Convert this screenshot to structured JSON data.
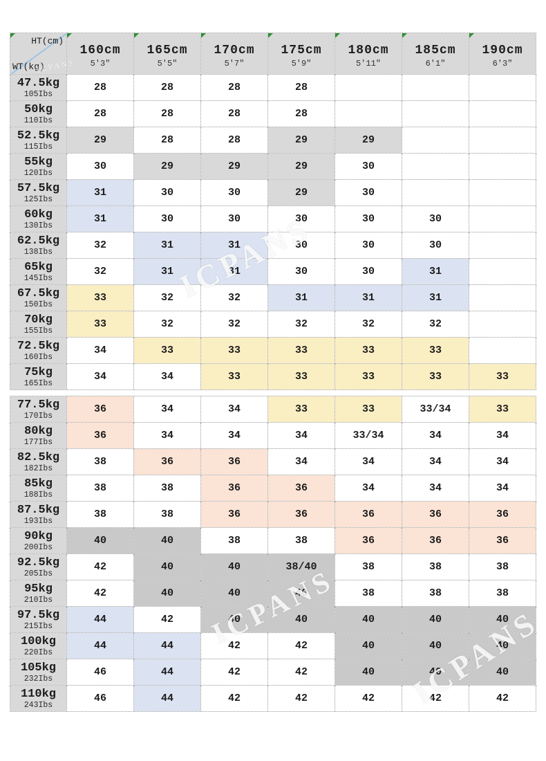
{
  "watermark_text": "ICPANS",
  "chart_data": {
    "type": "table",
    "corner": {
      "top_label": "HT(cm)",
      "bottom_label": "WT(kg)"
    },
    "columns": [
      {
        "cm": "160cm",
        "ft": "5'3\""
      },
      {
        "cm": "165cm",
        "ft": "5'5\""
      },
      {
        "cm": "170cm",
        "ft": "5'7\""
      },
      {
        "cm": "175cm",
        "ft": "5'9\""
      },
      {
        "cm": "180cm",
        "ft": "5'11\""
      },
      {
        "cm": "185cm",
        "ft": "6'1\""
      },
      {
        "cm": "190cm",
        "ft": "6'3\""
      }
    ],
    "bg_legend": {
      "w": "#ffffff",
      "g": "#d9d9d9",
      "d": "#c9c9c9",
      "b": "#dbe2f1",
      "y": "#faeec3",
      "p": "#fbe3d5"
    },
    "sections": [
      {
        "rows": [
          {
            "kg": "47.5kg",
            "lbs": "105Ibs",
            "values": [
              "28",
              "28",
              "28",
              "28",
              "",
              "",
              ""
            ],
            "bg": [
              "w",
              "w",
              "w",
              "w",
              "w",
              "w",
              "w"
            ]
          },
          {
            "kg": "50kg",
            "lbs": "110Ibs",
            "values": [
              "28",
              "28",
              "28",
              "28",
              "",
              "",
              ""
            ],
            "bg": [
              "w",
              "w",
              "w",
              "w",
              "w",
              "w",
              "w"
            ]
          },
          {
            "kg": "52.5kg",
            "lbs": "115Ibs",
            "values": [
              "29",
              "28",
              "28",
              "29",
              "29",
              "",
              ""
            ],
            "bg": [
              "g",
              "w",
              "w",
              "g",
              "g",
              "w",
              "w"
            ]
          },
          {
            "kg": "55kg",
            "lbs": "120Ibs",
            "values": [
              "30",
              "29",
              "29",
              "29",
              "30",
              "",
              ""
            ],
            "bg": [
              "w",
              "g",
              "g",
              "g",
              "w",
              "w",
              "w"
            ]
          },
          {
            "kg": "57.5kg",
            "lbs": "125Ibs",
            "values": [
              "31",
              "30",
              "30",
              "29",
              "30",
              "",
              ""
            ],
            "bg": [
              "b",
              "w",
              "w",
              "g",
              "w",
              "w",
              "w"
            ]
          },
          {
            "kg": "60kg",
            "lbs": "130Ibs",
            "values": [
              "31",
              "30",
              "30",
              "30",
              "30",
              "30",
              ""
            ],
            "bg": [
              "b",
              "w",
              "w",
              "w",
              "w",
              "w",
              "w"
            ]
          },
          {
            "kg": "62.5kg",
            "lbs": "138Ibs",
            "values": [
              "32",
              "31",
              "31",
              "30",
              "30",
              "30",
              ""
            ],
            "bg": [
              "w",
              "b",
              "b",
              "w",
              "w",
              "w",
              "w"
            ]
          },
          {
            "kg": "65kg",
            "lbs": "145Ibs",
            "values": [
              "32",
              "31",
              "31",
              "30",
              "30",
              "31",
              ""
            ],
            "bg": [
              "w",
              "b",
              "b",
              "w",
              "w",
              "b",
              "w"
            ]
          },
          {
            "kg": "67.5kg",
            "lbs": "150Ibs",
            "values": [
              "33",
              "32",
              "32",
              "31",
              "31",
              "31",
              ""
            ],
            "bg": [
              "y",
              "w",
              "w",
              "b",
              "b",
              "b",
              "w"
            ]
          },
          {
            "kg": "70kg",
            "lbs": "155Ibs",
            "values": [
              "33",
              "32",
              "32",
              "32",
              "32",
              "32",
              ""
            ],
            "bg": [
              "y",
              "w",
              "w",
              "w",
              "w",
              "w",
              "w"
            ]
          },
          {
            "kg": "72.5kg",
            "lbs": "160Ibs",
            "values": [
              "34",
              "33",
              "33",
              "33",
              "33",
              "33",
              ""
            ],
            "bg": [
              "w",
              "y",
              "y",
              "y",
              "y",
              "y",
              "w"
            ]
          },
          {
            "kg": "75kg",
            "lbs": "165Ibs",
            "values": [
              "34",
              "34",
              "33",
              "33",
              "33",
              "33",
              "33"
            ],
            "bg": [
              "w",
              "w",
              "y",
              "y",
              "y",
              "y",
              "y"
            ]
          }
        ]
      },
      {
        "rows": [
          {
            "kg": "77.5kg",
            "lbs": "170Ibs",
            "values": [
              "36",
              "34",
              "34",
              "33",
              "33",
              "33/34",
              "33"
            ],
            "bg": [
              "p",
              "w",
              "w",
              "y",
              "y",
              "w",
              "y"
            ]
          },
          {
            "kg": "80kg",
            "lbs": "177Ibs",
            "values": [
              "36",
              "34",
              "34",
              "34",
              "33/34",
              "34",
              "34"
            ],
            "bg": [
              "p",
              "w",
              "w",
              "w",
              "w",
              "w",
              "w"
            ]
          },
          {
            "kg": "82.5kg",
            "lbs": "182Ibs",
            "values": [
              "38",
              "36",
              "36",
              "34",
              "34",
              "34",
              "34"
            ],
            "bg": [
              "w",
              "p",
              "p",
              "w",
              "w",
              "w",
              "w"
            ]
          },
          {
            "kg": "85kg",
            "lbs": "188Ibs",
            "values": [
              "38",
              "38",
              "36",
              "36",
              "34",
              "34",
              "34"
            ],
            "bg": [
              "w",
              "w",
              "p",
              "p",
              "w",
              "w",
              "w"
            ]
          },
          {
            "kg": "87.5kg",
            "lbs": "193Ibs",
            "values": [
              "38",
              "38",
              "36",
              "36",
              "36",
              "36",
              "36"
            ],
            "bg": [
              "w",
              "w",
              "p",
              "p",
              "p",
              "p",
              "p"
            ]
          },
          {
            "kg": "90kg",
            "lbs": "200Ibs",
            "values": [
              "40",
              "40",
              "38",
              "38",
              "36",
              "36",
              "36"
            ],
            "bg": [
              "d",
              "d",
              "w",
              "w",
              "p",
              "p",
              "p"
            ]
          },
          {
            "kg": "92.5kg",
            "lbs": "205Ibs",
            "values": [
              "42",
              "40",
              "40",
              "38/40",
              "38",
              "38",
              "38"
            ],
            "bg": [
              "w",
              "d",
              "d",
              "d",
              "w",
              "w",
              "w"
            ]
          },
          {
            "kg": "95kg",
            "lbs": "210Ibs",
            "values": [
              "42",
              "40",
              "40",
              "40",
              "38",
              "38",
              "38"
            ],
            "bg": [
              "w",
              "d",
              "d",
              "d",
              "w",
              "w",
              "w"
            ]
          },
          {
            "kg": "97.5kg",
            "lbs": "215Ibs",
            "values": [
              "44",
              "42",
              "40",
              "40",
              "40",
              "40",
              "40"
            ],
            "bg": [
              "b",
              "w",
              "d",
              "d",
              "d",
              "d",
              "d"
            ]
          },
          {
            "kg": "100kg",
            "lbs": "220Ibs",
            "values": [
              "44",
              "44",
              "42",
              "42",
              "40",
              "40",
              "40"
            ],
            "bg": [
              "b",
              "b",
              "w",
              "w",
              "d",
              "d",
              "d"
            ]
          },
          {
            "kg": "105kg",
            "lbs": "232Ibs",
            "values": [
              "46",
              "44",
              "42",
              "42",
              "40",
              "40",
              "40"
            ],
            "bg": [
              "w",
              "b",
              "w",
              "w",
              "d",
              "d",
              "d"
            ]
          },
          {
            "kg": "110kg",
            "lbs": "243Ibs",
            "values": [
              "46",
              "44",
              "42",
              "42",
              "42",
              "42",
              "42"
            ],
            "bg": [
              "w",
              "b",
              "w",
              "w",
              "w",
              "w",
              "w"
            ]
          }
        ]
      }
    ]
  }
}
